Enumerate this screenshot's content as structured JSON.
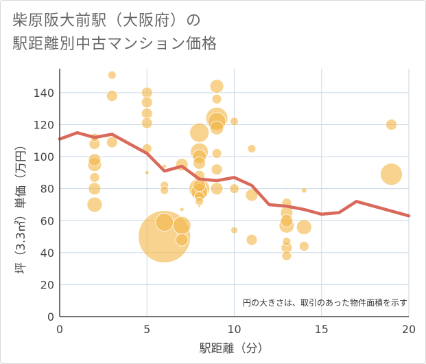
{
  "title_lines": [
    "柴原阪大前駅（大阪府）の",
    "駅距離別中古マンション価格"
  ],
  "chart_data": {
    "type": "scatter",
    "title": "柴原阪大前駅（大阪府）の駅距離別中古マンション価格",
    "xlabel": "駅距離（分）",
    "ylabel": "坪（3.3㎡）単価（万円）",
    "xlim": [
      0,
      20
    ],
    "ylim": [
      0,
      155
    ],
    "x_ticks": [
      0,
      5,
      10,
      15,
      20
    ],
    "y_ticks": [
      0,
      20,
      40,
      60,
      80,
      100,
      120,
      140
    ],
    "grid": true,
    "note": "円の大きさは、取引のあった物件面積を示す",
    "colors": {
      "bubble": "#f2b84b",
      "trend": "#d9695a",
      "grid": "#c8d8e6",
      "axis": "#444444"
    },
    "bubbles": [
      {
        "x": 2,
        "y": 112,
        "size": 6
      },
      {
        "x": 2,
        "y": 108,
        "size": 8
      },
      {
        "x": 2,
        "y": 98,
        "size": 9
      },
      {
        "x": 2,
        "y": 95,
        "size": 10
      },
      {
        "x": 2,
        "y": 87,
        "size": 7
      },
      {
        "x": 2,
        "y": 80,
        "size": 9
      },
      {
        "x": 2,
        "y": 70,
        "size": 11
      },
      {
        "x": 3,
        "y": 151,
        "size": 6
      },
      {
        "x": 3,
        "y": 138,
        "size": 8
      },
      {
        "x": 3,
        "y": 109,
        "size": 8
      },
      {
        "x": 5,
        "y": 140,
        "size": 8
      },
      {
        "x": 5,
        "y": 134,
        "size": 8
      },
      {
        "x": 5,
        "y": 127,
        "size": 8
      },
      {
        "x": 5,
        "y": 121,
        "size": 8
      },
      {
        "x": 5,
        "y": 105,
        "size": 7
      },
      {
        "x": 5,
        "y": 90,
        "size": 3
      },
      {
        "x": 6,
        "y": 94,
        "size": 3
      },
      {
        "x": 6,
        "y": 82,
        "size": 6
      },
      {
        "x": 6,
        "y": 79,
        "size": 6
      },
      {
        "x": 6,
        "y": 59,
        "size": 13
      },
      {
        "x": 6,
        "y": 50,
        "size": 38
      },
      {
        "x": 7,
        "y": 95,
        "size": 9
      },
      {
        "x": 7,
        "y": 67,
        "size": 3
      },
      {
        "x": 7,
        "y": 57,
        "size": 13
      },
      {
        "x": 7,
        "y": 48,
        "size": 9
      },
      {
        "x": 8,
        "y": 115,
        "size": 14
      },
      {
        "x": 8,
        "y": 103,
        "size": 13
      },
      {
        "x": 8,
        "y": 100,
        "size": 10
      },
      {
        "x": 8,
        "y": 96,
        "size": 9
      },
      {
        "x": 8,
        "y": 88,
        "size": 8
      },
      {
        "x": 8,
        "y": 82,
        "size": 9
      },
      {
        "x": 8,
        "y": 80,
        "size": 15
      },
      {
        "x": 8,
        "y": 78,
        "size": 12
      },
      {
        "x": 8,
        "y": 75,
        "size": 7
      },
      {
        "x": 8,
        "y": 72,
        "size": 6
      },
      {
        "x": 8,
        "y": 69,
        "size": 2
      },
      {
        "x": 9,
        "y": 144,
        "size": 10
      },
      {
        "x": 9,
        "y": 136,
        "size": 7
      },
      {
        "x": 9,
        "y": 124,
        "size": 16
      },
      {
        "x": 9,
        "y": 122,
        "size": 13
      },
      {
        "x": 9,
        "y": 118,
        "size": 10
      },
      {
        "x": 9,
        "y": 102,
        "size": 7
      },
      {
        "x": 9,
        "y": 92,
        "size": 8
      },
      {
        "x": 9,
        "y": 80,
        "size": 9
      },
      {
        "x": 10,
        "y": 122,
        "size": 6
      },
      {
        "x": 10,
        "y": 80,
        "size": 7
      },
      {
        "x": 10,
        "y": 54,
        "size": 5
      },
      {
        "x": 11,
        "y": 105,
        "size": 6
      },
      {
        "x": 11,
        "y": 76,
        "size": 9
      },
      {
        "x": 11,
        "y": 48,
        "size": 8
      },
      {
        "x": 13,
        "y": 81,
        "size": 1
      },
      {
        "x": 13,
        "y": 71,
        "size": 7
      },
      {
        "x": 13,
        "y": 65,
        "size": 9
      },
      {
        "x": 13,
        "y": 60,
        "size": 9
      },
      {
        "x": 13,
        "y": 57,
        "size": 11
      },
      {
        "x": 13,
        "y": 47,
        "size": 6
      },
      {
        "x": 13,
        "y": 43,
        "size": 8
      },
      {
        "x": 13,
        "y": 38,
        "size": 7
      },
      {
        "x": 14,
        "y": 79,
        "size": 4
      },
      {
        "x": 14,
        "y": 56,
        "size": 11
      },
      {
        "x": 14,
        "y": 44,
        "size": 7
      },
      {
        "x": 19,
        "y": 120,
        "size": 8
      },
      {
        "x": 19,
        "y": 89,
        "size": 16
      }
    ],
    "trend": [
      {
        "x": 0,
        "y": 111
      },
      {
        "x": 1,
        "y": 115
      },
      {
        "x": 2,
        "y": 112
      },
      {
        "x": 3,
        "y": 114
      },
      {
        "x": 4,
        "y": 108
      },
      {
        "x": 5,
        "y": 102
      },
      {
        "x": 6,
        "y": 91
      },
      {
        "x": 7,
        "y": 94
      },
      {
        "x": 8,
        "y": 86
      },
      {
        "x": 9,
        "y": 85
      },
      {
        "x": 10,
        "y": 87
      },
      {
        "x": 11,
        "y": 82
      },
      {
        "x": 12,
        "y": 70
      },
      {
        "x": 13,
        "y": 69
      },
      {
        "x": 14,
        "y": 67
      },
      {
        "x": 15,
        "y": 64
      },
      {
        "x": 16,
        "y": 65
      },
      {
        "x": 17,
        "y": 72
      },
      {
        "x": 18,
        "y": 69
      },
      {
        "x": 19,
        "y": 66
      },
      {
        "x": 20,
        "y": 63
      }
    ]
  }
}
